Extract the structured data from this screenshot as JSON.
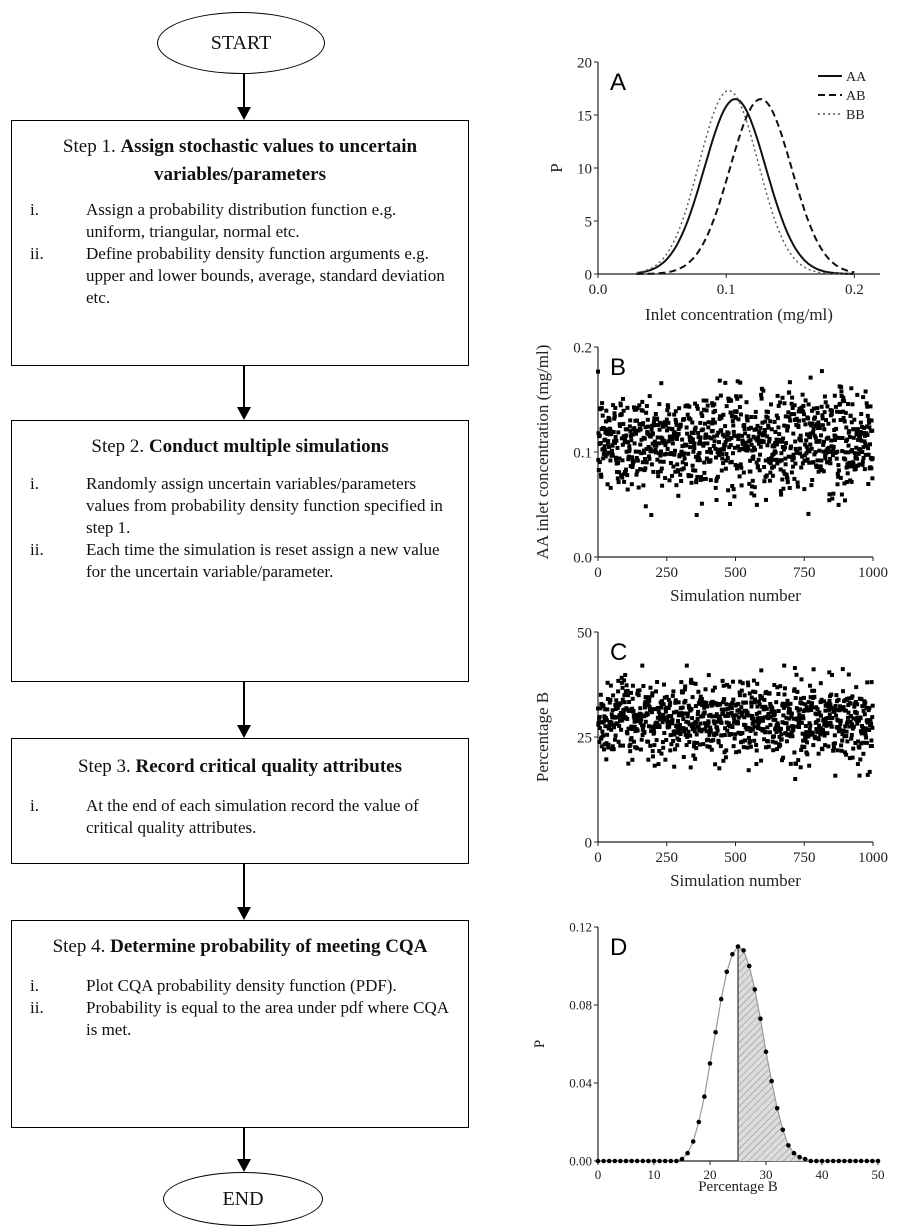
{
  "flow": {
    "start": "START",
    "end": "END",
    "steps": [
      {
        "prefix": "Step 1. ",
        "bold": "Assign stochastic values to uncertain variables/parameters",
        "items": [
          {
            "num": "i.",
            "text": "Assign a probability distribution function e.g. uniform, triangular, normal etc."
          },
          {
            "num": "ii.",
            "text": "Define probability density function arguments e.g. upper and lower bounds, average, standard deviation etc."
          }
        ]
      },
      {
        "prefix": "Step 2. ",
        "bold": "Conduct multiple simulations",
        "items": [
          {
            "num": "i.",
            "text": "Randomly assign uncertain variables/parameters values from probability density function specified in step 1."
          },
          {
            "num": "ii.",
            "text": "Each time the simulation is reset assign a new value for the uncertain variable/parameter."
          }
        ]
      },
      {
        "prefix": "Step 3. ",
        "bold": "Record critical quality attributes",
        "items": [
          {
            "num": "i.",
            "text": "At the end of each simulation record the value of critical quality attributes."
          }
        ]
      },
      {
        "prefix": "Step 4. ",
        "bold": "Determine probability of meeting CQA",
        "items": [
          {
            "num": "i.",
            "text": "Plot CQA probability density function (PDF)."
          },
          {
            "num": "ii.",
            "text": "Probability is equal to the area under pdf where CQA is met."
          }
        ]
      }
    ]
  },
  "chart_data": [
    {
      "panel": "A",
      "type": "line",
      "xlabel": "Inlet concentration (mg/ml)",
      "ylabel": "P",
      "xlim": [
        0.0,
        0.22
      ],
      "ylim": [
        0,
        20
      ],
      "xticks": [
        "0.0",
        "0.1",
        "0.2"
      ],
      "yticks": [
        "0",
        "5",
        "10",
        "15",
        "20"
      ],
      "legend_position": "top-right",
      "series": [
        {
          "name": "AA",
          "style": "solid",
          "mean": 0.107,
          "peak": 16.5,
          "sd": 0.024
        },
        {
          "name": "AB",
          "style": "dashed",
          "mean": 0.127,
          "peak": 16.5,
          "sd": 0.024
        },
        {
          "name": "BB",
          "style": "dotted",
          "mean": 0.102,
          "peak": 17.3,
          "sd": 0.023
        }
      ]
    },
    {
      "panel": "B",
      "type": "scatter",
      "xlabel": "Simulation number",
      "ylabel": "AA inlet concentration (mg/ml)",
      "xlim": [
        0,
        1000
      ],
      "ylim": [
        0.0,
        0.2
      ],
      "xticks": [
        "0",
        "250",
        "500",
        "750",
        "1000"
      ],
      "yticks": [
        "0.0",
        "0.1",
        "0.2"
      ],
      "n_points": 1000,
      "mean": 0.11,
      "range": [
        0.04,
        0.185
      ]
    },
    {
      "panel": "C",
      "type": "scatter",
      "xlabel": "Simulation number",
      "ylabel": "Percentage B",
      "xlim": [
        0,
        1000
      ],
      "ylim": [
        0,
        50
      ],
      "xticks": [
        "0",
        "250",
        "500",
        "750",
        "1000"
      ],
      "yticks": [
        "0",
        "25",
        "50"
      ],
      "n_points": 1000,
      "mean": 29,
      "range": [
        15,
        42
      ]
    },
    {
      "panel": "D",
      "type": "line",
      "xlabel": "Percentage B",
      "ylabel": "P",
      "xlim": [
        0,
        50
      ],
      "ylim": [
        0,
        0.12
      ],
      "xticks": [
        "0",
        "10",
        "20",
        "30",
        "40",
        "50"
      ],
      "yticks": [
        "0.00",
        "0.04",
        "0.08",
        "0.12"
      ],
      "shaded_from_x": 25,
      "x": [
        0,
        1,
        2,
        3,
        4,
        5,
        6,
        7,
        8,
        9,
        10,
        11,
        12,
        13,
        14,
        15,
        16,
        17,
        18,
        19,
        20,
        21,
        22,
        23,
        24,
        25,
        26,
        27,
        28,
        29,
        30,
        31,
        32,
        33,
        34,
        35,
        36,
        37,
        38,
        39,
        40,
        41,
        42,
        43,
        44,
        45,
        46,
        47,
        48,
        49,
        50
      ],
      "y": [
        0,
        0,
        0,
        0,
        0,
        0,
        0,
        0,
        0,
        0,
        0,
        0,
        0,
        0,
        0,
        0.001,
        0.004,
        0.01,
        0.02,
        0.033,
        0.05,
        0.066,
        0.083,
        0.097,
        0.106,
        0.11,
        0.108,
        0.1,
        0.088,
        0.073,
        0.056,
        0.041,
        0.027,
        0.016,
        0.008,
        0.004,
        0.002,
        0.001,
        0,
        0,
        0,
        0,
        0,
        0,
        0,
        0,
        0,
        0,
        0,
        0,
        0
      ]
    }
  ]
}
